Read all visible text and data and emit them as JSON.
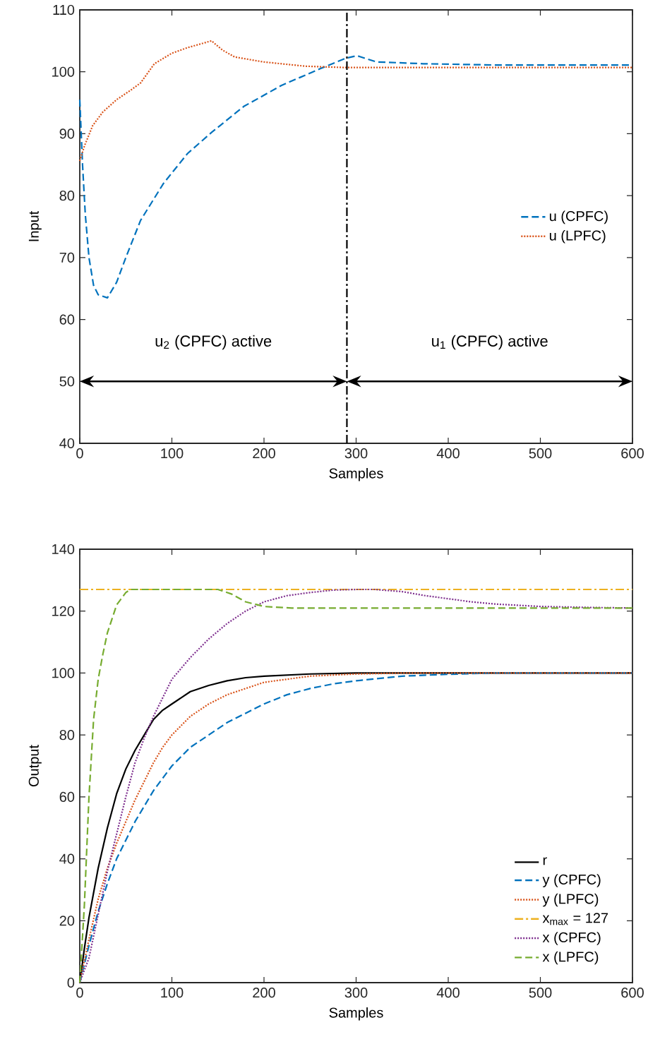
{
  "chart_data": [
    {
      "type": "line",
      "xlabel": "Samples",
      "ylabel": "Input",
      "xlim": [
        0,
        600
      ],
      "xticks": [
        0,
        100,
        200,
        300,
        400,
        500,
        600
      ],
      "ylim": [
        40,
        110
      ],
      "yticks": [
        40,
        50,
        60,
        70,
        80,
        90,
        100,
        110
      ],
      "legend": "right",
      "annotations": [
        "u$_{2}$ (CPFC) active",
        "u$_{1}$ (CPFC) active"
      ],
      "ref_lines": [
        {
          "axis": "x",
          "value": 290,
          "color": "#000000",
          "line_style": "dashdot"
        }
      ],
      "series": [
        {
          "name": "u (CPFC)",
          "color": "#0072bd",
          "line_style": "dashed",
          "x": [
            0,
            3,
            6,
            10,
            15,
            20,
            30,
            40,
            50,
            66,
            91,
            117,
            143,
            178,
            219,
            261,
            289,
            301,
            322,
            373,
            450,
            600
          ],
          "values": [
            95.5,
            85,
            77,
            70,
            65.5,
            64,
            63.5,
            66,
            70,
            76,
            82,
            86.8,
            90.2,
            94.4,
            97.8,
            100.5,
            102.2,
            102.6,
            101.6,
            101.3,
            101.1,
            101.1
          ]
        },
        {
          "name": "u (LPFC)",
          "color": "#d95319",
          "line_style": "dotted",
          "x": [
            0,
            5,
            14,
            25,
            40,
            55,
            66,
            81,
            100,
            117,
            143,
            155,
            168,
            199,
            245,
            286,
            400,
            600
          ],
          "values": [
            85.6,
            88,
            91.3,
            93.5,
            95.5,
            97,
            98.2,
            101.3,
            103,
            103.9,
            105,
            103.5,
            102.4,
            101.6,
            100.9,
            100.7,
            100.7,
            100.7
          ]
        }
      ]
    },
    {
      "type": "line",
      "xlabel": "Samples",
      "ylabel": "Output",
      "xlim": [
        0,
        600
      ],
      "xticks": [
        0,
        100,
        200,
        300,
        400,
        500,
        600
      ],
      "ylim": [
        0,
        140
      ],
      "yticks": [
        0,
        20,
        40,
        60,
        80,
        100,
        120,
        140
      ],
      "legend": "bottom right",
      "series": [
        {
          "name": "r",
          "color": "#000000",
          "line_style": "solid",
          "x": [
            0,
            5,
            10,
            15,
            20,
            30,
            40,
            50,
            60,
            70,
            80,
            90,
            100,
            120,
            140,
            160,
            180,
            200,
            250,
            300,
            600
          ],
          "values": [
            0,
            11,
            21,
            29,
            37,
            50,
            61,
            69,
            75,
            80,
            85,
            88,
            90,
            94,
            96,
            97.5,
            98.5,
            99,
            99.7,
            100,
            100
          ]
        },
        {
          "name": "y (CPFC)",
          "color": "#0072bd",
          "line_style": "dashed",
          "x": [
            0,
            10,
            20,
            30,
            40,
            50,
            60,
            70,
            80,
            100,
            120,
            140,
            160,
            180,
            200,
            225,
            250,
            275,
            300,
            350,
            400,
            450,
            600
          ],
          "values": [
            0,
            12,
            23,
            32,
            40,
            46,
            52,
            57,
            62,
            70,
            76,
            80,
            84,
            87,
            90,
            93,
            95,
            96.5,
            97.5,
            99,
            99.6,
            100,
            100
          ]
        },
        {
          "name": "y (LPFC)",
          "color": "#d95319",
          "line_style": "dotted",
          "x": [
            0,
            10,
            20,
            30,
            40,
            50,
            60,
            70,
            80,
            90,
            100,
            120,
            140,
            160,
            180,
            200,
            250,
            300,
            350,
            600
          ],
          "values": [
            0,
            14,
            27,
            37,
            45,
            52,
            59,
            65,
            71,
            76,
            80,
            86,
            90,
            93,
            95,
            97,
            99,
            99.7,
            100,
            100
          ]
        },
        {
          "name": "x$_{max}$ = 127",
          "color": "#edb120",
          "line_style": "dashdot",
          "x": [
            0,
            600
          ],
          "values": [
            127,
            127
          ]
        },
        {
          "name": "x (CPFC)",
          "color": "#7e2f8e",
          "line_style": "dotted",
          "x": [
            0,
            10,
            20,
            30,
            40,
            50,
            60,
            70,
            80,
            90,
            100,
            120,
            140,
            160,
            180,
            200,
            225,
            250,
            275,
            300,
            320,
            350,
            375,
            400,
            425,
            450,
            500,
            550,
            600
          ],
          "values": [
            0,
            8,
            22,
            36,
            48,
            60,
            71,
            79,
            86,
            92,
            98,
            105,
            111,
            116,
            120,
            123,
            125,
            126,
            126.8,
            127,
            127,
            126.3,
            125,
            124,
            123,
            122.3,
            121.5,
            121.2,
            121
          ]
        },
        {
          "name": "x (LPFC)",
          "color": "#77ac30",
          "line_style": "dashed",
          "x": [
            0,
            5,
            10,
            15,
            20,
            25,
            30,
            40,
            50,
            55,
            150,
            165,
            180,
            200,
            230,
            600
          ],
          "values": [
            0,
            25,
            60,
            85,
            98,
            106,
            113,
            122,
            126,
            127,
            127,
            125.5,
            123,
            121.5,
            121,
            121
          ]
        }
      ]
    }
  ]
}
